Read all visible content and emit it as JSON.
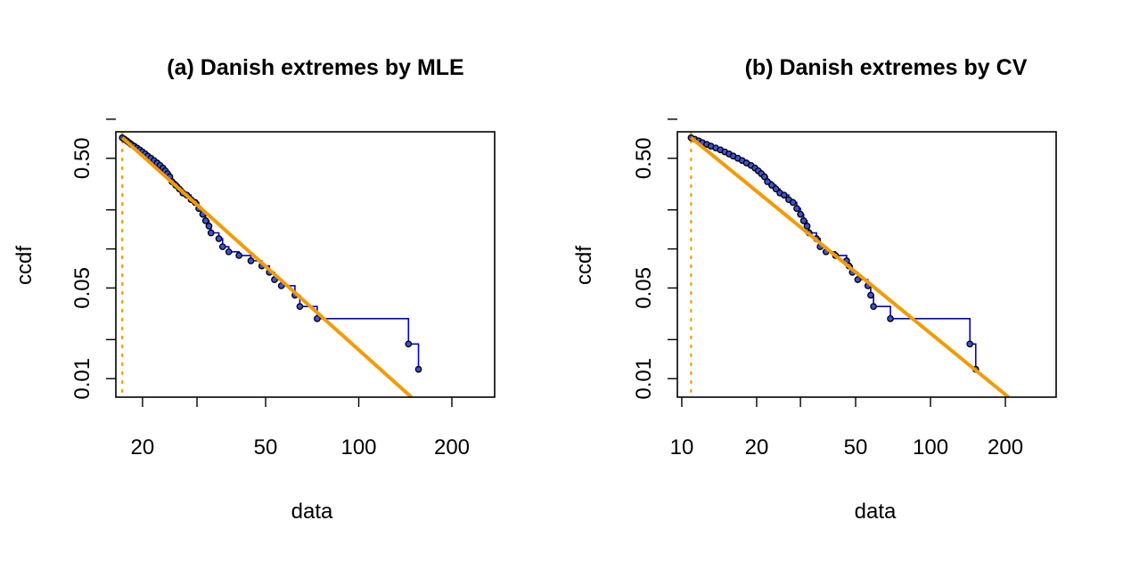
{
  "chart_data": [
    {
      "type": "scatter",
      "title": "(a) Danish extremes by MLE",
      "xlabel": "data",
      "ylabel": "ccdf",
      "x_scale": "log",
      "y_scale": "log",
      "xlim": [
        16.4,
        275
      ],
      "ylim": [
        0.0072,
        0.8
      ],
      "x_ticks": [
        {
          "value": 20,
          "label": "20"
        },
        {
          "value": 30,
          "label": ""
        },
        {
          "value": 50,
          "label": "50"
        },
        {
          "value": 100,
          "label": "100"
        },
        {
          "value": 200,
          "label": "200"
        }
      ],
      "y_ticks": [
        {
          "value": 0.01,
          "label": "0.01"
        },
        {
          "value": 0.02,
          "label": ""
        },
        {
          "value": 0.05,
          "label": "0.05"
        },
        {
          "value": 0.1,
          "label": ""
        },
        {
          "value": 0.2,
          "label": ""
        },
        {
          "value": 0.5,
          "label": "0.50"
        },
        {
          "value": 1.0,
          "label": ""
        }
      ],
      "series": [
        {
          "kind": "empirical_ccdf",
          "color": "#0000cc",
          "points": [
            [
              17.2,
              0.72
            ],
            [
              17.5,
              0.7
            ],
            [
              17.8,
              0.68
            ],
            [
              18.1,
              0.66
            ],
            [
              18.4,
              0.64
            ],
            [
              18.8,
              0.62
            ],
            [
              19.2,
              0.6
            ],
            [
              19.6,
              0.58
            ],
            [
              20.0,
              0.56
            ],
            [
              20.4,
              0.54
            ],
            [
              20.8,
              0.52
            ],
            [
              21.3,
              0.5
            ],
            [
              21.8,
              0.48
            ],
            [
              22.3,
              0.46
            ],
            [
              22.8,
              0.44
            ],
            [
              23.3,
              0.42
            ],
            [
              23.7,
              0.4
            ],
            [
              24.1,
              0.38
            ],
            [
              24.5,
              0.36
            ],
            [
              24.9,
              0.33
            ],
            [
              25.6,
              0.31
            ],
            [
              26.3,
              0.29
            ],
            [
              27.0,
              0.27
            ],
            [
              27.8,
              0.26
            ],
            [
              28.7,
              0.24
            ],
            [
              29.6,
              0.228
            ],
            [
              30.4,
              0.205
            ],
            [
              31.3,
              0.185
            ],
            [
              32.0,
              0.165
            ],
            [
              32.8,
              0.15
            ],
            [
              33.3,
              0.133
            ],
            [
              35.3,
              0.12
            ],
            [
              36.3,
              0.104
            ],
            [
              38.0,
              0.095
            ],
            [
              41.0,
              0.089
            ],
            [
              44.8,
              0.081
            ],
            [
              48.6,
              0.074
            ],
            [
              51.4,
              0.066
            ],
            [
              53.4,
              0.058
            ],
            [
              56.2,
              0.052
            ],
            [
              62.2,
              0.044
            ],
            [
              64.5,
              0.036
            ],
            [
              73.4,
              0.029
            ],
            [
              144.8,
              0.0185
            ],
            [
              156.0,
              0.0118
            ]
          ]
        },
        {
          "kind": "fitted_power_law",
          "color": "#f59a00",
          "line": [
            [
              17.2,
              0.72
            ],
            [
              148.0,
              0.0072
            ]
          ]
        },
        {
          "kind": "xmin_marker",
          "color": "#f59a00",
          "x": 17.2
        }
      ]
    },
    {
      "type": "scatter",
      "title": "(b) Danish extremes by CV",
      "xlabel": "data",
      "ylabel": "ccdf",
      "x_scale": "log",
      "y_scale": "log",
      "xlim": [
        9.6,
        320
      ],
      "ylim": [
        0.0072,
        0.8
      ],
      "x_ticks": [
        {
          "value": 10,
          "label": "10"
        },
        {
          "value": 20,
          "label": "20"
        },
        {
          "value": 30,
          "label": ""
        },
        {
          "value": 50,
          "label": "50"
        },
        {
          "value": 100,
          "label": "100"
        },
        {
          "value": 200,
          "label": "200"
        }
      ],
      "y_ticks": [
        {
          "value": 0.01,
          "label": "0.01"
        },
        {
          "value": 0.02,
          "label": ""
        },
        {
          "value": 0.05,
          "label": "0.05"
        },
        {
          "value": 0.1,
          "label": ""
        },
        {
          "value": 0.2,
          "label": ""
        },
        {
          "value": 0.5,
          "label": "0.50"
        },
        {
          "value": 1.0,
          "label": ""
        }
      ],
      "series": [
        {
          "kind": "empirical_ccdf",
          "color": "#0000cc",
          "points": [
            [
              10.9,
              0.72
            ],
            [
              11.3,
              0.7
            ],
            [
              11.7,
              0.68
            ],
            [
              12.1,
              0.66
            ],
            [
              12.6,
              0.64
            ],
            [
              13.1,
              0.62
            ],
            [
              13.7,
              0.6
            ],
            [
              14.3,
              0.58
            ],
            [
              14.9,
              0.56
            ],
            [
              15.5,
              0.54
            ],
            [
              16.1,
              0.52
            ],
            [
              16.8,
              0.5
            ],
            [
              17.5,
              0.48
            ],
            [
              18.2,
              0.46
            ],
            [
              19.0,
              0.44
            ],
            [
              19.7,
              0.42
            ],
            [
              20.3,
              0.4
            ],
            [
              20.9,
              0.38
            ],
            [
              21.5,
              0.36
            ],
            [
              22.1,
              0.33
            ],
            [
              23.0,
              0.31
            ],
            [
              23.9,
              0.29
            ],
            [
              24.8,
              0.27
            ],
            [
              25.8,
              0.26
            ],
            [
              26.9,
              0.24
            ],
            [
              28.0,
              0.228
            ],
            [
              29.0,
              0.205
            ],
            [
              30.0,
              0.185
            ],
            [
              30.9,
              0.165
            ],
            [
              31.9,
              0.15
            ],
            [
              32.5,
              0.133
            ],
            [
              34.8,
              0.12
            ],
            [
              36.0,
              0.104
            ],
            [
              38.0,
              0.095
            ],
            [
              41.5,
              0.089
            ],
            [
              46.0,
              0.081
            ],
            [
              47.0,
              0.074
            ],
            [
              48.5,
              0.066
            ],
            [
              51.0,
              0.058
            ],
            [
              56.0,
              0.052
            ],
            [
              57.5,
              0.044
            ],
            [
              59.0,
              0.036
            ],
            [
              69.0,
              0.029
            ],
            [
              144.0,
              0.0185
            ],
            [
              152.0,
              0.0118
            ]
          ]
        },
        {
          "kind": "fitted_power_law",
          "color": "#f59a00",
          "line": [
            [
              10.9,
              0.72
            ],
            [
              206.0,
              0.0072
            ]
          ]
        },
        {
          "kind": "xmin_marker",
          "color": "#f59a00",
          "x": 10.9
        }
      ]
    }
  ]
}
